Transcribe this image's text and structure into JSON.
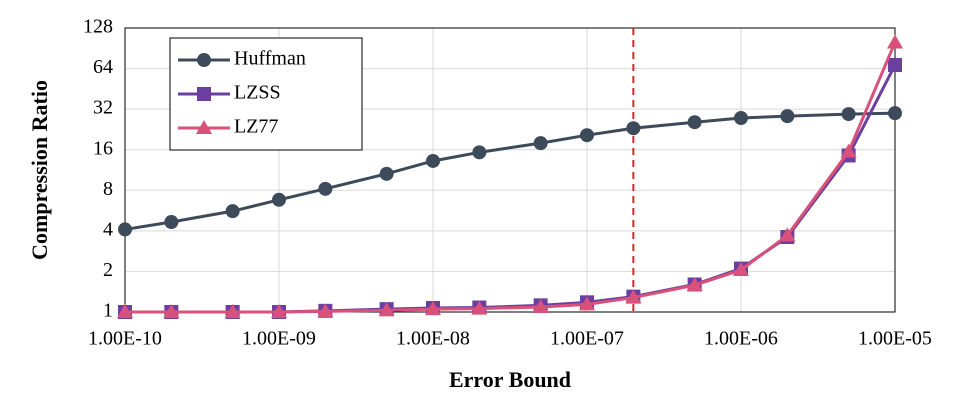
{
  "chart_data": {
    "type": "line",
    "x_label": "Error Bound",
    "y_label": "Compression Ratio",
    "x_log": true,
    "y_log": true,
    "grid": true,
    "legend": "top-left",
    "x": [
      1e-10,
      2e-10,
      5e-10,
      1e-09,
      2e-09,
      5e-09,
      1e-08,
      2e-08,
      5e-08,
      1e-07,
      2e-07,
      5e-07,
      1e-06,
      2e-06,
      5e-06,
      1e-05
    ],
    "series": [
      {
        "name": "Huffman",
        "color": "#3d4a5a",
        "marker": "circle",
        "values": [
          4.1,
          4.65,
          5.6,
          6.8,
          8.2,
          10.6,
          13.2,
          15.3,
          17.9,
          20.5,
          23.1,
          25.6,
          27.5,
          28.4,
          29.4,
          29.9
        ]
      },
      {
        "name": "LZSS",
        "color": "#6b3fa0",
        "marker": "square",
        "values": [
          1,
          1,
          1,
          1,
          1.02,
          1.05,
          1.07,
          1.08,
          1.12,
          1.18,
          1.3,
          1.6,
          2.1,
          3.6,
          14.5,
          68
        ]
      },
      {
        "name": "LZ77",
        "color": "#d9507a",
        "marker": "triangle",
        "values": [
          1,
          1,
          1,
          1,
          1.01,
          1.03,
          1.05,
          1.06,
          1.09,
          1.14,
          1.28,
          1.58,
          2.05,
          3.7,
          15.5,
          100
        ]
      }
    ],
    "reference_line_x": 2e-07,
    "reference_line_color": "#d62728",
    "xlim": [
      1e-10,
      1e-05
    ],
    "xticks": [
      {
        "value": 1e-10,
        "label": "1.00E-10"
      },
      {
        "value": 1e-09,
        "label": "1.00E-09"
      },
      {
        "value": 1e-08,
        "label": "1.00E-08"
      },
      {
        "value": 1e-07,
        "label": "1.00E-07"
      },
      {
        "value": 1e-06,
        "label": "1.00E-06"
      },
      {
        "value": 1e-05,
        "label": "1.00E-05"
      }
    ],
    "ylim": [
      1,
      128
    ],
    "yticks": [
      1,
      2,
      4,
      8,
      16,
      32,
      64,
      128
    ]
  }
}
